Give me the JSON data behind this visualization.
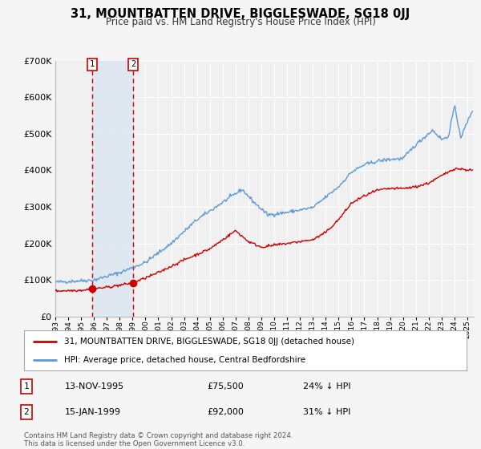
{
  "title": "31, MOUNTBATTEN DRIVE, BIGGLESWADE, SG18 0JJ",
  "subtitle": "Price paid vs. HM Land Registry's House Price Index (HPI)",
  "legend_label_red": "31, MOUNTBATTEN DRIVE, BIGGLESWADE, SG18 0JJ (detached house)",
  "legend_label_blue": "HPI: Average price, detached house, Central Bedfordshire",
  "footer_line1": "Contains HM Land Registry data © Crown copyright and database right 2024.",
  "footer_line2": "This data is licensed under the Open Government Licence v3.0.",
  "transaction1_date": "13-NOV-1995",
  "transaction1_price": "£75,500",
  "transaction1_hpi": "24% ↓ HPI",
  "transaction1_x": 1995.87,
  "transaction1_y": 75500,
  "transaction2_date": "15-JAN-1999",
  "transaction2_price": "£92,000",
  "transaction2_hpi": "31% ↓ HPI",
  "transaction2_x": 1999.04,
  "transaction2_y": 92000,
  "red_color": "#cc0000",
  "blue_color": "#5b9bd5",
  "shaded_region_color": "#dce6f1",
  "plot_bg_color": "#f0f0f0",
  "grid_color": "#ffffff",
  "hatch_color": "#c0c0c0",
  "ylim": [
    0,
    700000
  ],
  "xlim_start": 1993.0,
  "xlim_end": 2025.5,
  "ytick_labels": [
    "£0",
    "£100K",
    "£200K",
    "£300K",
    "£400K",
    "£500K",
    "£600K",
    "£700K"
  ],
  "ytick_values": [
    0,
    100000,
    200000,
    300000,
    400000,
    500000,
    600000,
    700000
  ]
}
